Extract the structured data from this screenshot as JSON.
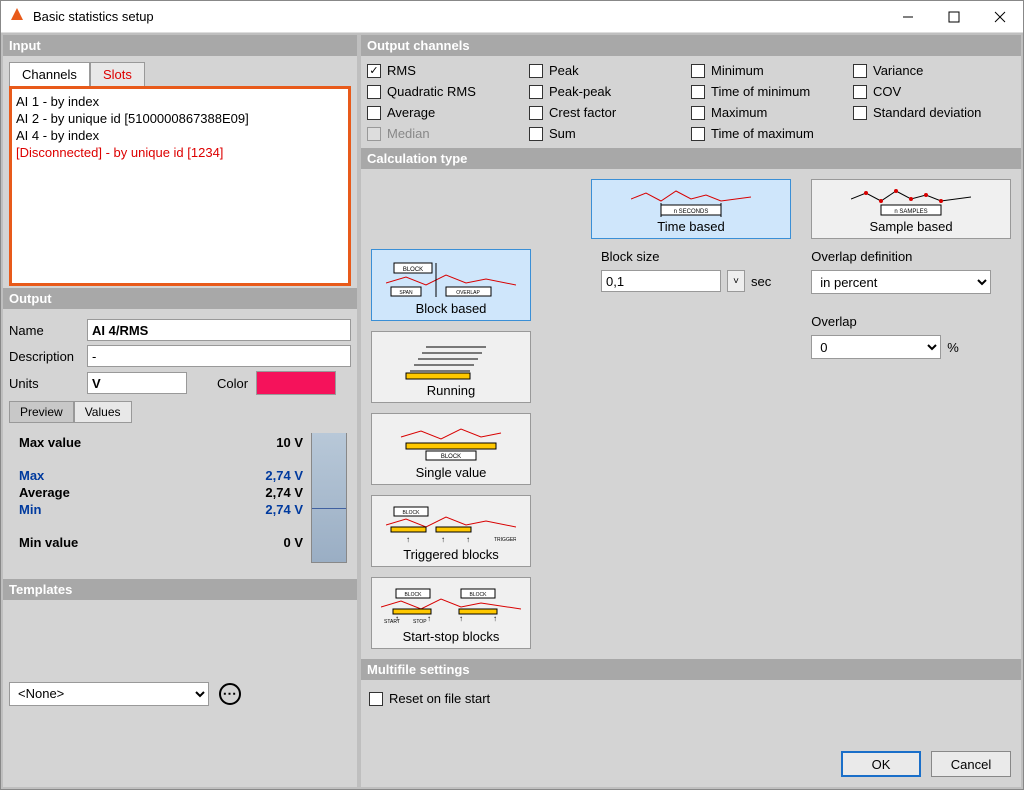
{
  "window": {
    "title": "Basic statistics setup",
    "logo_color": "#e85a1a"
  },
  "input": {
    "header": "Input",
    "tabs": {
      "channels": "Channels",
      "slots": "Slots"
    },
    "rows": [
      {
        "text": "AI 1 - by index",
        "err": false
      },
      {
        "text": "AI 2 - by unique id [5100000867388E09]",
        "err": false
      },
      {
        "text": "AI 4 - by index",
        "err": false
      },
      {
        "text": "[Disconnected] - by unique id [1234]",
        "err": true
      }
    ],
    "highlight_border": "#e85a1a"
  },
  "output": {
    "header": "Output",
    "name_label": "Name",
    "name": "AI 4/RMS",
    "desc_label": "Description",
    "desc": "-",
    "units_label": "Units",
    "units": "V",
    "color_label": "Color",
    "color": "#f5125b",
    "tabs": {
      "preview": "Preview",
      "values": "Values"
    },
    "preview": {
      "maxv_label": "Max value",
      "maxv": "10 V",
      "max_label": "Max",
      "max": "2,74 V",
      "avg_label": "Average",
      "avg": "2,74 V",
      "min_label": "Min",
      "min": "2,74 V",
      "minv_label": "Min value",
      "minv": "0 V"
    }
  },
  "templates": {
    "header": "Templates",
    "selected": "<None>"
  },
  "output_channels": {
    "header": "Output channels",
    "items": [
      {
        "label": "RMS",
        "checked": true
      },
      {
        "label": "Quadratic RMS",
        "checked": false
      },
      {
        "label": "Average",
        "checked": false
      },
      {
        "label": "Median",
        "checked": false,
        "disabled": true
      },
      {
        "label": "Peak",
        "checked": false
      },
      {
        "label": "Peak-peak",
        "checked": false
      },
      {
        "label": "Crest factor",
        "checked": false
      },
      {
        "label": "Sum",
        "checked": false
      },
      {
        "label": "Minimum",
        "checked": false
      },
      {
        "label": "Time of minimum",
        "checked": false
      },
      {
        "label": "Maximum",
        "checked": false
      },
      {
        "label": "Time of maximum",
        "checked": false
      },
      {
        "label": "Variance",
        "checked": false
      },
      {
        "label": "COV",
        "checked": false
      },
      {
        "label": "Standard deviation",
        "checked": false
      }
    ]
  },
  "calc": {
    "header": "Calculation type",
    "time_based": "Time based",
    "sample_based": "Sample based",
    "block_based": "Block based",
    "running": "Running",
    "single_value": "Single value",
    "triggered_blocks": "Triggered blocks",
    "start_stop_blocks": "Start-stop blocks",
    "block_size_label": "Block size",
    "block_size": "0,1",
    "block_unit": "sec",
    "overlap_def_label": "Overlap definition",
    "overlap_def": "in percent",
    "overlap_label": "Overlap",
    "overlap": "0",
    "overlap_unit": "%",
    "glyph_seconds": "n SECONDS",
    "glyph_samples": "n SAMPLES",
    "glyph_block": "BLOCK",
    "glyph_span": "SPAN",
    "glyph_overlap": "OVERLAP",
    "glyph_triggers": "TRIGGERS",
    "glyph_start": "START",
    "glyph_stop": "STOP",
    "colors": {
      "selected_bg": "#cfe6fb",
      "selected_border": "#3a8fd6",
      "wave": "#d80000",
      "bar": "#ffc800"
    }
  },
  "multifile": {
    "header": "Multifile settings",
    "reset_label": "Reset on file start",
    "reset_checked": false
  },
  "buttons": {
    "ok": "OK",
    "cancel": "Cancel"
  }
}
